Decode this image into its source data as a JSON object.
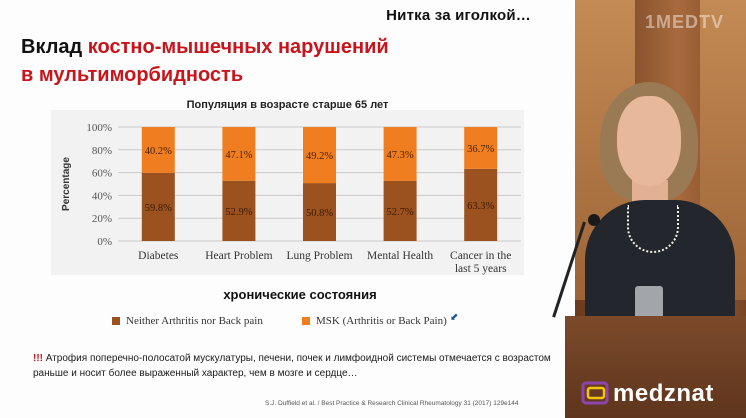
{
  "header": {
    "text": "Нитка за иголкой…"
  },
  "channel_logo": "1MEDTV",
  "slide": {
    "title_part1": "Вклад ",
    "title_part2": "костно-мышечных нарушений",
    "title_line2": "в мультиморбидность",
    "note_marker": "!!!",
    "note_text": " Атрофия поперечно-полосатой мускулатуры, печени, почек и лимфоидной системы отмечается с возрастом раньше и носит более выраженный характер, чем в мозге и сердце…",
    "citation": "S.J. Duffield et al. / Best Practice & Research Clinical Rheumatology 31 (2017) 129e144"
  },
  "watermark": {
    "brand": "medznat"
  },
  "colors": {
    "neither": "#9b521f",
    "msk": "#f07d1f",
    "accent": "#c8141a"
  },
  "chart_data": {
    "type": "bar",
    "stacked": true,
    "title": "Популяция в возрасте старше 65 лет",
    "xlabel": "хронические состояния",
    "ylabel": "Percentage",
    "ylim": [
      0,
      100
    ],
    "yticks": [
      "0%",
      "20%",
      "40%",
      "60%",
      "80%",
      "100%"
    ],
    "ytick_values": [
      0,
      20,
      40,
      60,
      80,
      100
    ],
    "categories": [
      [
        "Diabetes"
      ],
      [
        "Heart Problem"
      ],
      [
        "Lung Problem"
      ],
      [
        "Mental Health"
      ],
      [
        "Cancer in the",
        "last 5 years"
      ]
    ],
    "series": [
      {
        "name": "Neither Arthritis nor Back pain",
        "values": [
          59.8,
          52.9,
          50.8,
          52.7,
          63.3
        ],
        "labels": [
          "59.8%",
          "52.9%",
          "50.8%",
          "52.7%",
          "63.3%"
        ]
      },
      {
        "name": "MSK (Arthritis or Back Pain)",
        "values": [
          40.2,
          47.1,
          49.2,
          47.3,
          36.7
        ],
        "labels": [
          "40.2%",
          "47.1%",
          "49.2%",
          "47.3%",
          "36.7%"
        ]
      }
    ],
    "grid": true,
    "legend_position": "bottom"
  }
}
